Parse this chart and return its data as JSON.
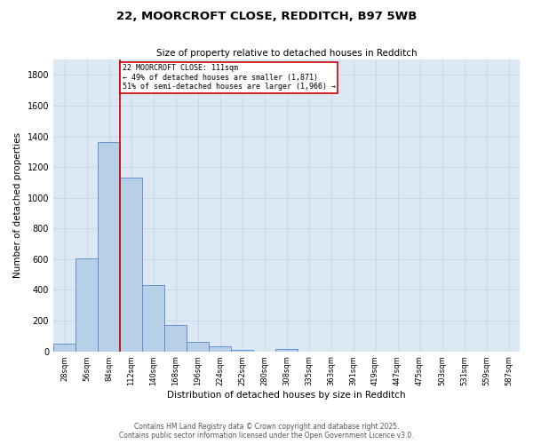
{
  "title_line1": "22, MOORCROFT CLOSE, REDDITCH, B97 5WB",
  "title_line2": "Size of property relative to detached houses in Redditch",
  "xlabel": "Distribution of detached houses by size in Redditch",
  "ylabel": "Number of detached properties",
  "bin_labels": [
    "28sqm",
    "56sqm",
    "84sqm",
    "112sqm",
    "140sqm",
    "168sqm",
    "196sqm",
    "224sqm",
    "252sqm",
    "280sqm",
    "308sqm",
    "335sqm",
    "363sqm",
    "391sqm",
    "419sqm",
    "447sqm",
    "475sqm",
    "503sqm",
    "531sqm",
    "559sqm",
    "587sqm"
  ],
  "bar_values": [
    50,
    605,
    1365,
    1130,
    430,
    170,
    60,
    35,
    10,
    0,
    15,
    0,
    0,
    0,
    0,
    0,
    0,
    0,
    0,
    0,
    0
  ],
  "bar_color": "#b8cfe8",
  "bar_edge_color": "#5588cc",
  "grid_color": "#c8d8ea",
  "background_color": "#dde8f5",
  "vline_color": "#cc0000",
  "annotation_text": "22 MOORCROFT CLOSE: 111sqm\n← 49% of detached houses are smaller (1,871)\n51% of semi-detached houses are larger (1,966) →",
  "annotation_box_color": "#cc0000",
  "ylim": [
    0,
    1900
  ],
  "yticks": [
    0,
    200,
    400,
    600,
    800,
    1000,
    1200,
    1400,
    1600,
    1800
  ],
  "footer_line1": "Contains HM Land Registry data © Crown copyright and database right 2025.",
  "footer_line2": "Contains public sector information licensed under the Open Government Licence v3.0."
}
